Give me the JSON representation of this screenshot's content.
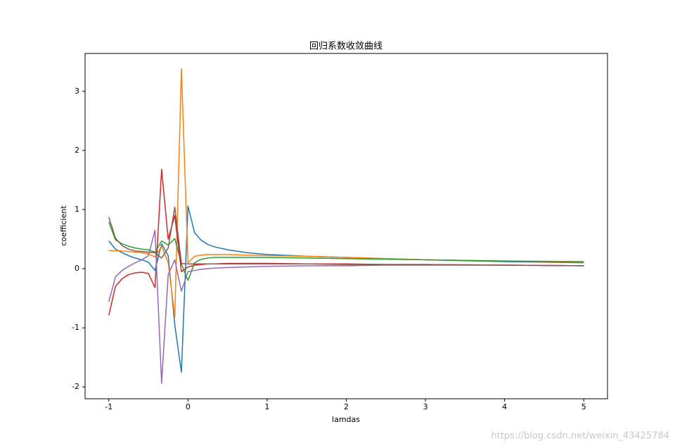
{
  "chart_data": {
    "type": "line",
    "title": "回归系数收敛曲线",
    "x_label": "lamdas",
    "y_label": "coefficient",
    "watermark": "https://blog.csdn.net/weixin_43425784",
    "x": [
      -1,
      -0.917,
      -0.833,
      -0.75,
      -0.667,
      -0.583,
      -0.5,
      -0.417,
      -0.333,
      -0.25,
      -0.167,
      -0.083,
      0,
      0.083,
      0.167,
      0.25,
      0.333,
      0.5,
      0.75,
      1,
      1.5,
      2,
      2.5,
      3,
      4,
      5
    ],
    "series": [
      {
        "color": "#1f77b4",
        "values": [
          0.47,
          0.33,
          0.27,
          0.22,
          0.18,
          0.15,
          0.11,
          -0.03,
          0.42,
          0.22,
          -0.95,
          -1.75,
          1.06,
          0.61,
          0.48,
          0.41,
          0.37,
          0.32,
          0.27,
          0.24,
          0.21,
          0.19,
          0.17,
          0.15,
          0.12,
          0.1
        ]
      },
      {
        "color": "#ff7f0e",
        "values": [
          0.31,
          0.3,
          0.3,
          0.29,
          0.28,
          0.27,
          0.25,
          0.2,
          0.38,
          0.1,
          -0.82,
          3.38,
          0.1,
          0.21,
          0.23,
          0.24,
          0.24,
          0.24,
          0.23,
          0.22,
          0.21,
          0.19,
          0.17,
          0.15,
          0.13,
          0.11
        ]
      },
      {
        "color": "#2ca02c",
        "values": [
          0.79,
          0.49,
          0.42,
          0.38,
          0.35,
          0.33,
          0.32,
          0.28,
          0.47,
          0.4,
          0.51,
          0.08,
          -0.2,
          0.1,
          0.16,
          0.18,
          0.19,
          0.19,
          0.19,
          0.19,
          0.18,
          0.17,
          0.16,
          0.15,
          0.13,
          0.12
        ]
      },
      {
        "color": "#d62728",
        "values": [
          -0.79,
          -0.3,
          -0.17,
          -0.1,
          -0.07,
          -0.06,
          -0.08,
          -0.32,
          1.68,
          0.5,
          0.9,
          -0.05,
          0.03,
          0.06,
          0.07,
          0.08,
          0.08,
          0.09,
          0.09,
          0.09,
          0.08,
          0.08,
          0.07,
          0.07,
          0.06,
          0.05
        ]
      },
      {
        "color": "#9467bd",
        "values": [
          -0.56,
          -0.14,
          -0.03,
          0.04,
          0.1,
          0.15,
          0.22,
          0.65,
          -1.94,
          -0.1,
          0.15,
          -0.38,
          -0.05,
          -0.03,
          -0.01,
          0.0,
          0.01,
          0.02,
          0.03,
          0.04,
          0.05,
          0.05,
          0.06,
          0.06,
          0.06,
          0.05
        ]
      },
      {
        "color": "#8c564b",
        "values": [
          0.87,
          0.52,
          0.39,
          0.33,
          0.3,
          0.29,
          0.28,
          0.27,
          0.18,
          0.35,
          1.04,
          0.09,
          0.08,
          0.08,
          0.08,
          0.08,
          0.08,
          0.08,
          0.08,
          0.08,
          0.08,
          0.07,
          0.07,
          0.07,
          0.06,
          0.05
        ]
      }
    ],
    "xlim": [
      -1.3,
      5.3
    ],
    "ylim": [
      -2.2,
      3.64
    ],
    "xticks": [
      -1,
      0,
      1,
      2,
      3,
      4,
      5
    ],
    "yticks": [
      -2,
      -1,
      0,
      1,
      2,
      3
    ]
  }
}
